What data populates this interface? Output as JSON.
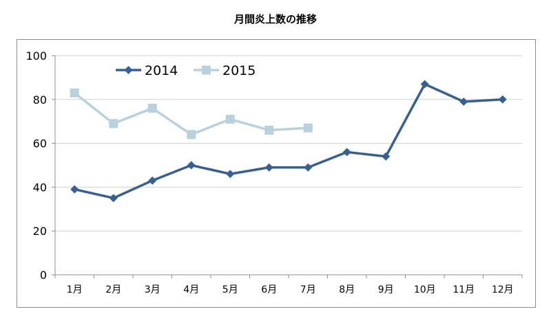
{
  "chart_data": {
    "type": "line",
    "title": "月間炎上数の推移",
    "xlabel": "",
    "ylabel": "",
    "categories": [
      "1月",
      "2月",
      "3月",
      "4月",
      "5月",
      "6月",
      "7月",
      "8月",
      "9月",
      "10月",
      "11月",
      "12月"
    ],
    "ylim": [
      0,
      100
    ],
    "yticks": [
      0,
      20,
      40,
      60,
      80,
      100
    ],
    "grid": true,
    "legend_position": "top-left",
    "series": [
      {
        "name": "2014",
        "color": "#376092",
        "marker": "diamond",
        "values": [
          39,
          35,
          43,
          50,
          46,
          49,
          49,
          56,
          54,
          87,
          79,
          80
        ]
      },
      {
        "name": "2015",
        "color": "#b7d2de",
        "marker": "square",
        "values": [
          83,
          69,
          76,
          64,
          71,
          66,
          67,
          null,
          null,
          null,
          null,
          null
        ]
      }
    ]
  }
}
